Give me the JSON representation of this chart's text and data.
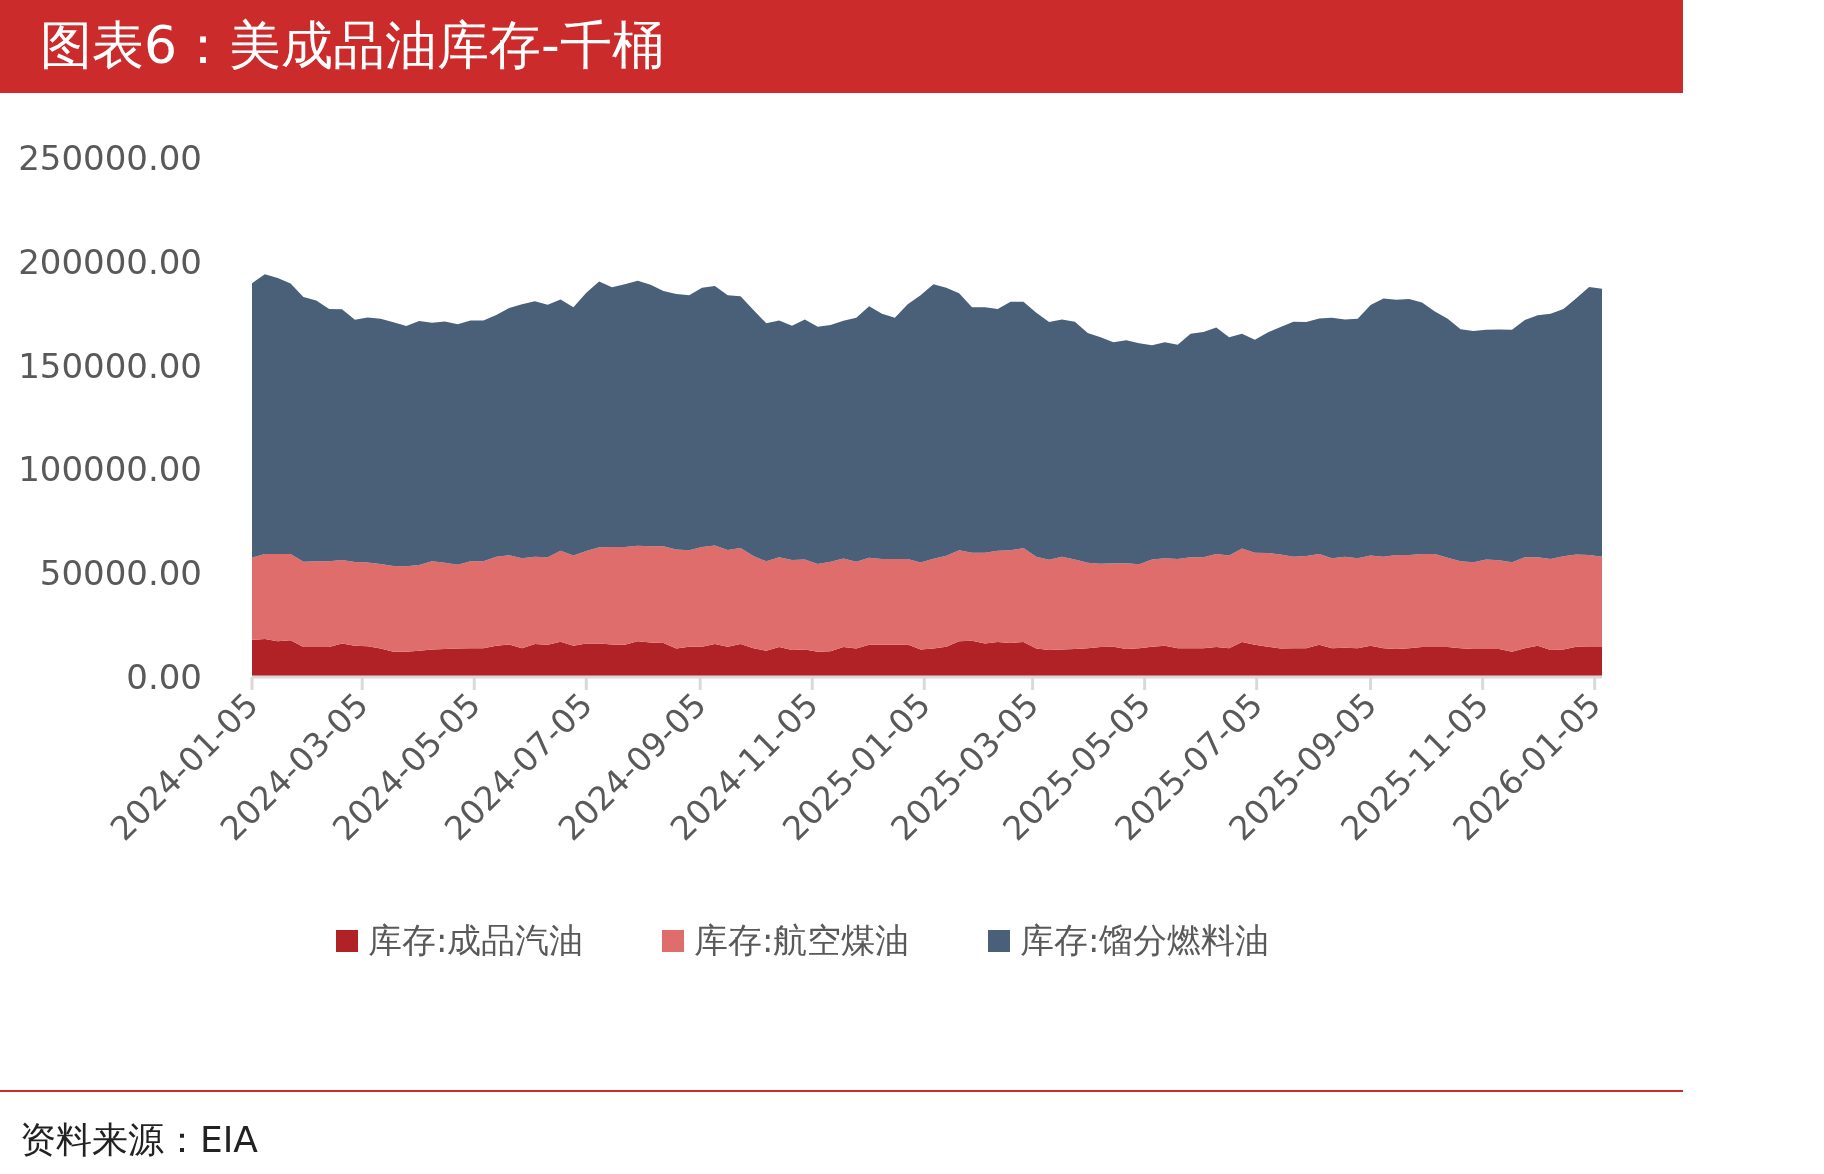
{
  "chart_data": {
    "type": "area",
    "stacked": true,
    "title": "图表6：美成品油库存-千桶",
    "annotations": [
      "资料来源：EIA"
    ],
    "legend": "bottom",
    "grid": false,
    "x": [
      "2024-01-05",
      "2024-01-12",
      "2024-01-19",
      "2024-01-26",
      "2024-02-02",
      "2024-02-09",
      "2024-02-16",
      "2024-02-23",
      "2024-03-01",
      "2024-03-08",
      "2024-03-15",
      "2024-03-22",
      "2024-03-29",
      "2024-04-05",
      "2024-04-12",
      "2024-04-19",
      "2024-04-26",
      "2024-05-03",
      "2024-05-10",
      "2024-05-17",
      "2024-05-24",
      "2024-05-31",
      "2024-06-07",
      "2024-06-14",
      "2024-06-21",
      "2024-06-28",
      "2024-07-05",
      "2024-07-12",
      "2024-07-19",
      "2024-07-26",
      "2024-08-02",
      "2024-08-09",
      "2024-08-16",
      "2024-08-23",
      "2024-08-30",
      "2024-09-06",
      "2024-09-13",
      "2024-09-20",
      "2024-09-27",
      "2024-10-04",
      "2024-10-11",
      "2024-10-18",
      "2024-10-25",
      "2024-11-01",
      "2024-11-08",
      "2024-11-15",
      "2024-11-22",
      "2024-11-29",
      "2024-12-06",
      "2024-12-13",
      "2024-12-20",
      "2024-12-27",
      "2025-01-03",
      "2025-01-10",
      "2025-01-17",
      "2025-01-24",
      "2025-01-31",
      "2025-02-07",
      "2025-02-14",
      "2025-02-21",
      "2025-02-28",
      "2025-03-07",
      "2025-03-14",
      "2025-03-21",
      "2025-03-28",
      "2025-04-04",
      "2025-04-11",
      "2025-04-18",
      "2025-04-25",
      "2025-05-02",
      "2025-05-09",
      "2025-05-16",
      "2025-05-23",
      "2025-05-30",
      "2025-06-06",
      "2025-06-13",
      "2025-06-20",
      "2025-06-27",
      "2025-07-04",
      "2025-07-11",
      "2025-07-18",
      "2025-07-25",
      "2025-08-01",
      "2025-08-08",
      "2025-08-15",
      "2025-08-22",
      "2025-08-29",
      "2025-09-05",
      "2025-09-12",
      "2025-09-19",
      "2025-09-26",
      "2025-10-03",
      "2025-10-10",
      "2025-10-17",
      "2025-10-24",
      "2025-10-31",
      "2025-11-07",
      "2025-11-14",
      "2025-11-21",
      "2025-11-28",
      "2025-12-05",
      "2025-12-12",
      "2025-12-19",
      "2025-12-26",
      "2026-01-02",
      "2026-01-09"
    ],
    "xlim": [
      "2024-01-05",
      "2026-01-09"
    ],
    "xticks": [
      "2024-01-05",
      "2024-03-05",
      "2024-05-05",
      "2024-07-05",
      "2024-09-05",
      "2024-11-05",
      "2025-01-05",
      "2025-03-05",
      "2025-05-05",
      "2025-07-05",
      "2025-09-05",
      "2025-11-05",
      "2026-01-05"
    ],
    "ylim": [
      0,
      250000
    ],
    "yticks": [
      {
        "value": 0,
        "label": "0.00"
      },
      {
        "value": 50000,
        "label": "50000.00"
      },
      {
        "value": 100000,
        "label": "100000.00"
      },
      {
        "value": 150000,
        "label": "150000.00"
      },
      {
        "value": 200000,
        "label": "200000.00"
      },
      {
        "value": 250000,
        "label": "250000.00"
      }
    ],
    "series": [
      {
        "name": "库存:成品汽油",
        "color": "#b02226",
        "values": [
          17900,
          18300,
          17200,
          17700,
          14400,
          14400,
          14400,
          16100,
          15000,
          14800,
          13700,
          12200,
          12200,
          12600,
          13300,
          13500,
          13700,
          13900,
          13900,
          15000,
          15700,
          13900,
          15900,
          15500,
          17000,
          15000,
          16100,
          16100,
          15700,
          15500,
          17200,
          16600,
          16400,
          13700,
          14600,
          14600,
          15900,
          14600,
          15900,
          13900,
          12600,
          14400,
          13000,
          13300,
          12200,
          12400,
          14400,
          13700,
          15500,
          15500,
          15500,
          15700,
          13300,
          13700,
          14600,
          17200,
          17500,
          16100,
          16800,
          16400,
          16800,
          13700,
          13000,
          13300,
          13500,
          13900,
          14400,
          14600,
          13500,
          13900,
          14600,
          15000,
          13900,
          13900,
          13900,
          14400,
          13900,
          16800,
          15500,
          14600,
          13700,
          13900,
          13900,
          15500,
          13900,
          14100,
          13900,
          15000,
          13900,
          13500,
          13900,
          14400,
          14400,
          14400,
          13900,
          13500,
          13500,
          13500,
          12200,
          13900,
          15000,
          13000,
          13300,
          14600,
          14400,
          14400
        ]
      },
      {
        "name": "库存:航空煤油",
        "color": "#de6d6c",
        "values": [
          39600,
          40900,
          42000,
          41500,
          41100,
          41300,
          41300,
          40200,
          40400,
          40400,
          40700,
          41300,
          41100,
          41300,
          42400,
          41500,
          40400,
          41800,
          41800,
          42900,
          42900,
          43300,
          42000,
          42200,
          43800,
          43500,
          44600,
          46400,
          46900,
          47100,
          46000,
          46400,
          46600,
          47700,
          46400,
          48000,
          47500,
          46600,
          46200,
          44400,
          43100,
          43300,
          43300,
          43300,
          42200,
          43100,
          42700,
          41800,
          42000,
          41300,
          41300,
          41100,
          41800,
          43300,
          43800,
          43800,
          42400,
          43800,
          44000,
          44600,
          45300,
          44200,
          43500,
          44600,
          43100,
          41100,
          40200,
          40200,
          41300,
          40400,
          42000,
          42200,
          42900,
          43800,
          43800,
          44900,
          44600,
          45100,
          44400,
          45100,
          45300,
          44000,
          44400,
          43800,
          43300,
          43800,
          43300,
          43500,
          44000,
          45300,
          44900,
          44900,
          44900,
          43100,
          41800,
          41800,
          43100,
          42700,
          43100,
          43800,
          42700,
          43800,
          44900,
          44400,
          44400,
          43500
        ]
      },
      {
        "name": "库存:馏分燃料油",
        "color": "#4a5f78",
        "values": [
          132200,
          134800,
          133000,
          130400,
          127500,
          125700,
          121600,
          120900,
          116700,
          118000,
          118200,
          117400,
          115800,
          117600,
          114900,
          116200,
          115800,
          116000,
          116000,
          116500,
          119100,
          122400,
          123100,
          121600,
          121100,
          119600,
          124400,
          128000,
          125100,
          126600,
          127700,
          126000,
          122900,
          123100,
          122900,
          124900,
          124900,
          122700,
          121300,
          118500,
          114700,
          114000,
          112900,
          115600,
          114300,
          114000,
          114500,
          117600,
          121100,
          118200,
          116200,
          122700,
          128800,
          132200,
          129100,
          123800,
          118200,
          118200,
          116500,
          119800,
          118700,
          117600,
          114500,
          114300,
          114500,
          110700,
          109000,
          106500,
          107400,
          106500,
          103200,
          104100,
          103200,
          107600,
          108500,
          109000,
          105200,
          103400,
          102500,
          106300,
          109600,
          113200,
          112700,
          113400,
          115800,
          114300,
          115400,
          120700,
          124400,
          122900,
          123300,
          121100,
          116700,
          115100,
          111800,
          111400,
          110700,
          111200,
          112000,
          114300,
          116500,
          118200,
          119100,
          123500,
          129100,
          129100
        ]
      }
    ]
  }
}
